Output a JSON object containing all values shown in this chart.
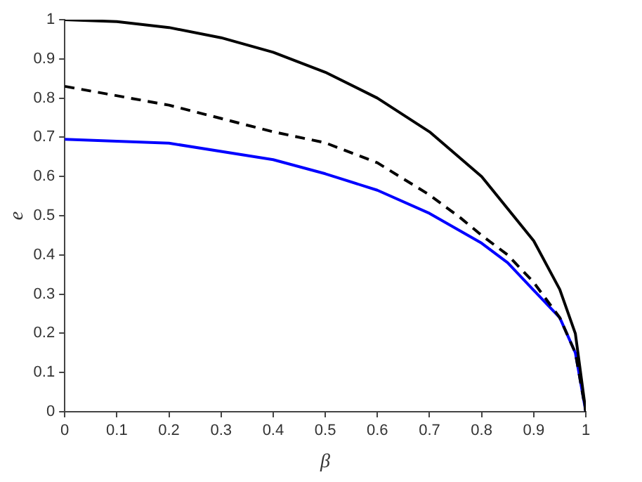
{
  "chart_data": {
    "type": "line",
    "xlabel": "β",
    "ylabel": "e",
    "xlim": [
      0,
      1
    ],
    "ylim": [
      0,
      1
    ],
    "xticks": [
      0,
      0.1,
      0.2,
      0.3,
      0.4,
      0.5,
      0.6,
      0.7,
      0.8,
      0.9,
      1
    ],
    "yticks": [
      0,
      0.1,
      0.2,
      0.3,
      0.4,
      0.5,
      0.6,
      0.7,
      0.8,
      0.9,
      1
    ],
    "grid": false,
    "legend": false,
    "marker": "none",
    "series": [
      {
        "color": "#000000",
        "line_style": "solid",
        "x": [
          0,
          0.1,
          0.2,
          0.3,
          0.4,
          0.5,
          0.6,
          0.7,
          0.8,
          0.9,
          0.95,
          0.98,
          1
        ],
        "values": [
          1,
          0.995,
          0.98,
          0.954,
          0.917,
          0.866,
          0.8,
          0.714,
          0.6,
          0.436,
          0.312,
          0.199,
          0
        ]
      },
      {
        "color": "#000000",
        "line_style": "dashed",
        "x": [
          0,
          0.2,
          0.4,
          0.5,
          0.6,
          0.7,
          0.76,
          0.8,
          0.85,
          0.9,
          0.95,
          0.98,
          1
        ],
        "values": [
          0.83,
          0.782,
          0.714,
          0.686,
          0.635,
          0.553,
          0.494,
          0.45,
          0.4,
          0.33,
          0.24,
          0.15,
          0
        ]
      },
      {
        "color": "#0000ff",
        "line_style": "solid",
        "x": [
          0,
          0.2,
          0.4,
          0.5,
          0.6,
          0.7,
          0.8,
          0.85,
          0.9,
          0.95,
          0.98,
          1
        ],
        "values": [
          0.695,
          0.685,
          0.643,
          0.607,
          0.565,
          0.506,
          0.43,
          0.38,
          0.31,
          0.24,
          0.15,
          0
        ]
      }
    ]
  }
}
